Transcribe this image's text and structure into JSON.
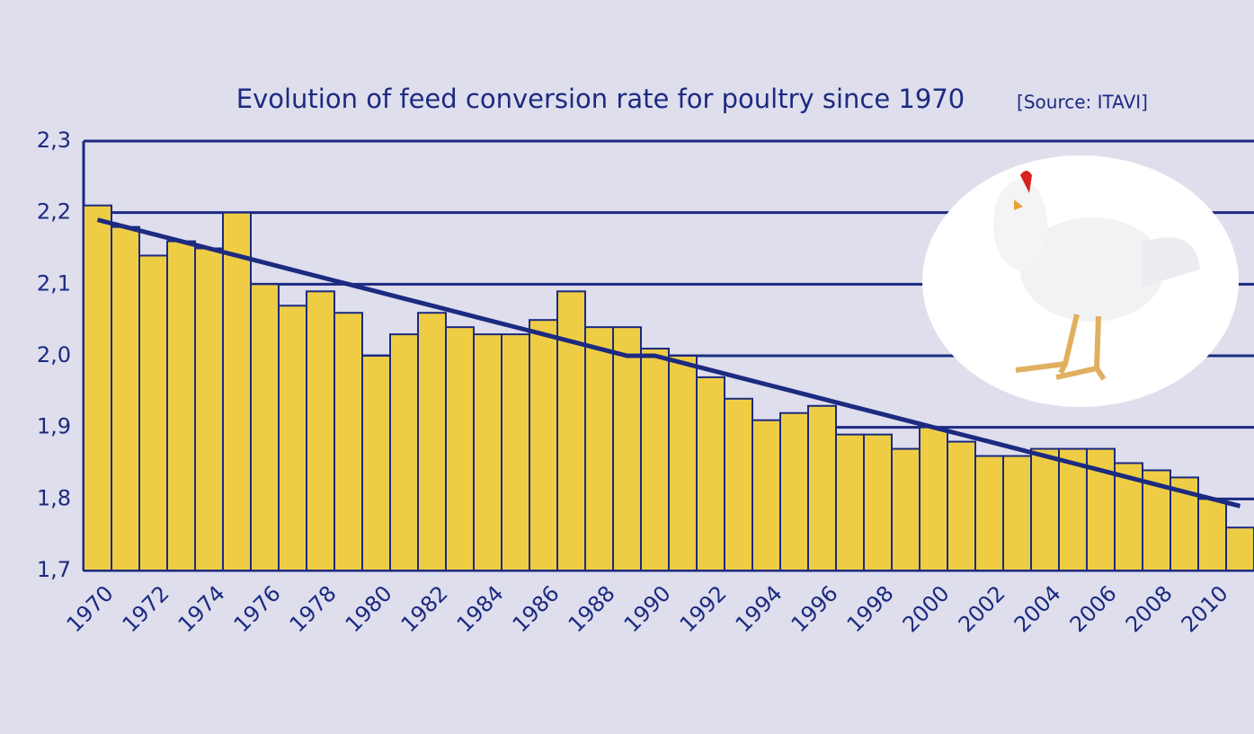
{
  "chart_data": {
    "type": "bar",
    "title": "Evolution of feed conversion rate for poultry since 1970",
    "subtitle": "[Source: ITAVI]",
    "categories": [
      "1970",
      null,
      "1972",
      null,
      "1974",
      null,
      "1976",
      null,
      "1978",
      null,
      "1980",
      null,
      "1982",
      null,
      "1984",
      null,
      "1986",
      null,
      "1988",
      null,
      "1990",
      null,
      "1992",
      null,
      "1994",
      null,
      "1996",
      null,
      "1998",
      null,
      "2000",
      null,
      "2002",
      null,
      "2004",
      null,
      "2006",
      null,
      "2008",
      null,
      "2010",
      null
    ],
    "series": [
      {
        "type": "bar",
        "color": "#eecd45",
        "values": [
          2.21,
          2.18,
          2.14,
          2.16,
          2.15,
          2.2,
          2.1,
          2.07,
          2.09,
          2.06,
          2.0,
          2.03,
          2.06,
          2.04,
          2.03,
          2.03,
          2.05,
          2.09,
          2.04,
          2.04,
          2.01,
          2.0,
          1.97,
          1.94,
          1.91,
          1.92,
          1.93,
          1.89,
          1.89,
          1.87,
          1.9,
          1.88,
          1.86,
          1.86,
          1.87,
          1.87,
          1.87,
          1.85,
          1.84,
          1.83,
          1.8,
          1.76
        ]
      },
      {
        "type": "line",
        "color": "#1c2a80",
        "values": [
          2.19,
          2.18,
          2.17,
          2.16,
          2.15,
          2.14,
          2.13,
          2.12,
          2.11,
          2.1,
          2.09,
          2.08,
          2.07,
          2.06,
          2.05,
          2.04,
          2.03,
          2.02,
          2.01,
          2.0,
          2.0,
          1.99,
          1.98,
          1.97,
          1.96,
          1.95,
          1.94,
          1.93,
          1.92,
          1.91,
          1.9,
          1.89,
          1.88,
          1.87,
          1.86,
          1.85,
          1.84,
          1.83,
          1.82,
          1.81,
          1.8,
          1.79
        ]
      }
    ],
    "ylim": [
      1.7,
      2.3
    ],
    "yticks": [
      {
        "value": 1.7,
        "label": "1,7"
      },
      {
        "value": 1.8,
        "label": "1,8"
      },
      {
        "value": 1.9,
        "label": "1,9"
      },
      {
        "value": 2.0,
        "label": "2,0"
      },
      {
        "value": 2.1,
        "label": "2,1"
      },
      {
        "value": 2.2,
        "label": "2,2"
      },
      {
        "value": 2.3,
        "label": "2,3"
      }
    ],
    "grid": true
  }
}
